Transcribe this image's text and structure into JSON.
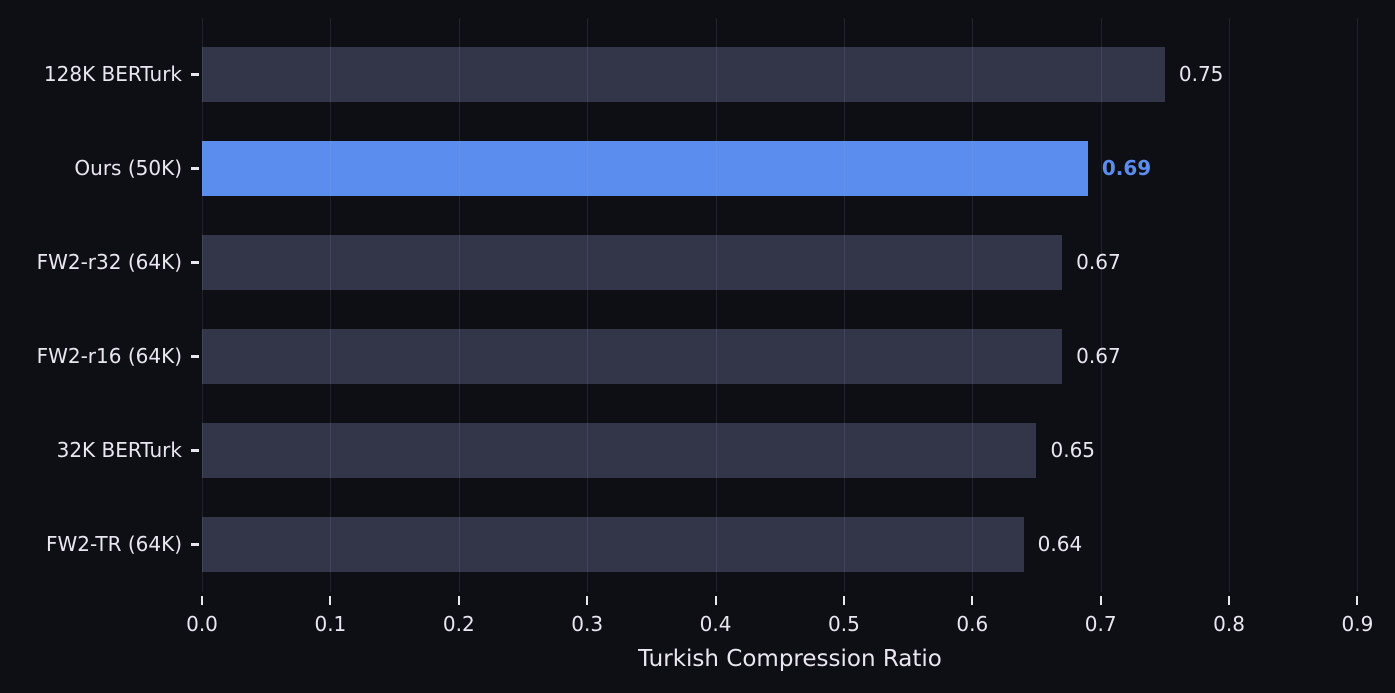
{
  "chart_data": {
    "type": "bar",
    "orientation": "horizontal",
    "title": "",
    "xlabel": "Turkish Compression Ratio",
    "ylabel": "",
    "categories": [
      "128K BERTurk",
      "Ours (50K)",
      "FW2-r32 (64K)",
      "FW2-r16 (64K)",
      "32K BERTurk",
      "FW2-TR (64K)"
    ],
    "values": [
      0.75,
      0.69,
      0.67,
      0.67,
      0.65,
      0.64
    ],
    "value_labels": [
      "0.75",
      "0.69",
      "0.67",
      "0.67",
      "0.65",
      "0.64"
    ],
    "highlight_index": 1,
    "highlighted_category": "Ours (50K)",
    "xlim": [
      0,
      0.916
    ],
    "xticks": [
      0,
      0.1,
      0.2,
      0.3,
      0.4,
      0.5,
      0.6,
      0.7,
      0.8,
      0.9
    ],
    "xtick_labels": [
      "0.0",
      "0.1",
      "0.2",
      "0.3",
      "0.4",
      "0.5",
      "0.6",
      "0.7",
      "0.8",
      "0.9"
    ],
    "grid": "vertical",
    "legend": "none"
  },
  "colors": {
    "background": "#0e0e15",
    "bar_default": "#333549",
    "bar_highlight": "#5b8dee",
    "text": "#e8e6ee",
    "value_label_default": "#e8e6ee",
    "value_label_highlight": "#5b8dee",
    "gridline": "rgba(170,180,210,0.12)",
    "tick": "#e8e6ee"
  }
}
